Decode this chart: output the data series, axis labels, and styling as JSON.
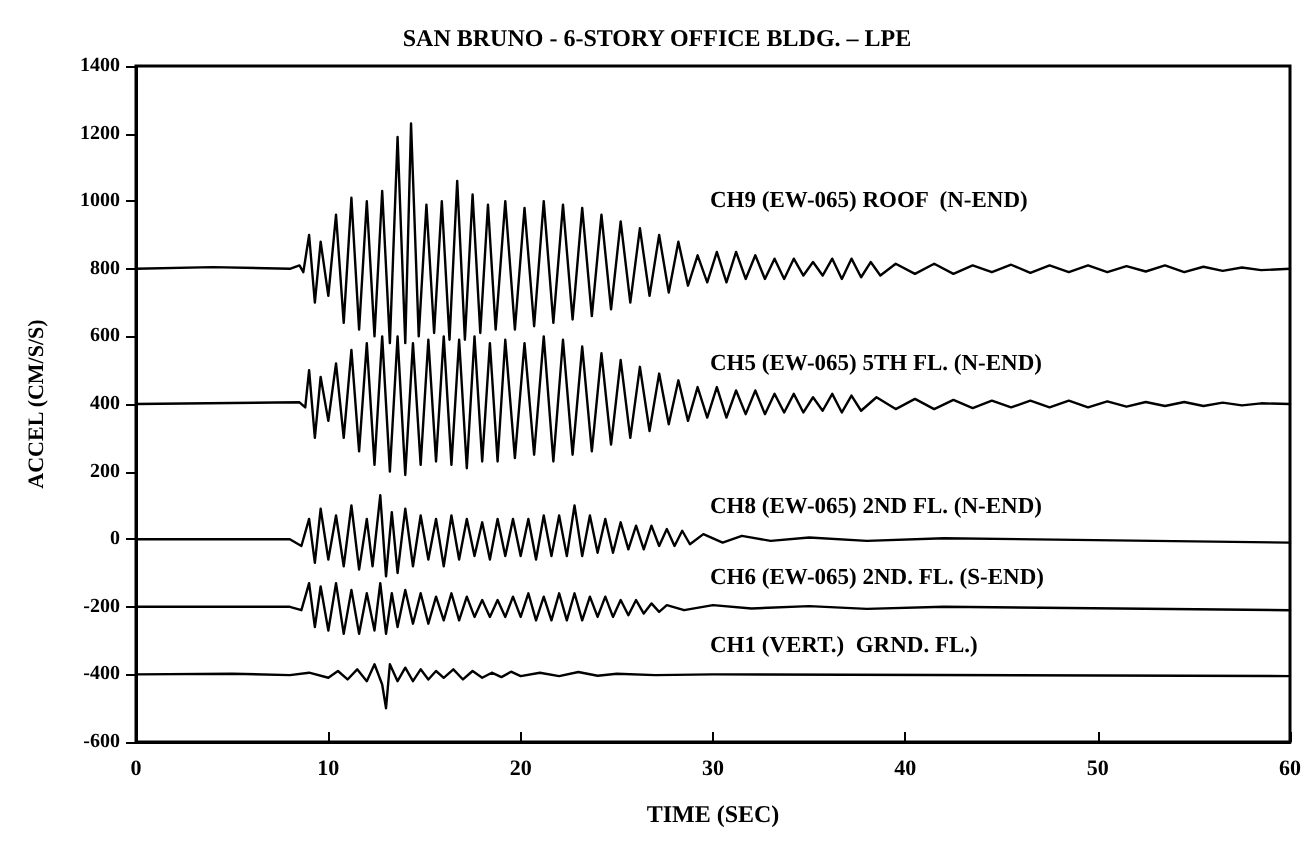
{
  "chart_data": {
    "type": "line",
    "title": "SAN BRUNO - 6-STORY OFFICE BLDG. – LPE",
    "xlabel": "TIME (SEC)",
    "ylabel": "ACCEL (CM/S/S)",
    "xlim": [
      0,
      60
    ],
    "xticks": [
      0,
      10,
      20,
      30,
      40,
      50,
      60
    ],
    "ylim": [
      -600,
      1400
    ],
    "yticks": [
      -600,
      -400,
      -200,
      0,
      200,
      400,
      600,
      800,
      1000,
      1200,
      1400
    ],
    "grid": false,
    "marker": "none",
    "line_style": "solid",
    "series": [
      {
        "name": "CH9 (EW-065) ROOF  (N-END)",
        "color": "#000000",
        "x": [
          0,
          4,
          8,
          8.5,
          8.7,
          9,
          9.3,
          9.6,
          10,
          10.4,
          10.8,
          11.2,
          11.6,
          12,
          12.4,
          12.8,
          13.2,
          13.6,
          14,
          14.3,
          14.7,
          15.1,
          15.5,
          15.9,
          16.3,
          16.7,
          17.1,
          17.5,
          17.9,
          18.3,
          18.7,
          19.2,
          19.7,
          20.2,
          20.7,
          21.2,
          21.7,
          22.2,
          22.7,
          23.2,
          23.7,
          24.2,
          24.7,
          25.2,
          25.7,
          26.2,
          26.7,
          27.2,
          27.7,
          28.2,
          28.7,
          29.2,
          29.7,
          30.2,
          30.7,
          31.2,
          31.7,
          32.2,
          32.7,
          33.2,
          33.7,
          34.2,
          34.7,
          35.2,
          35.7,
          36.2,
          36.7,
          37.2,
          37.7,
          38.2,
          38.7,
          39.5,
          40.5,
          41.5,
          42.5,
          43.5,
          44.5,
          45.5,
          46.5,
          47.5,
          48.5,
          49.5,
          50.5,
          51.5,
          52.5,
          53.5,
          54.5,
          55.5,
          56.5,
          57.5,
          58.5,
          60
        ],
        "values": [
          800,
          805,
          800,
          810,
          790,
          900,
          700,
          880,
          720,
          960,
          640,
          1010,
          620,
          1000,
          600,
          1030,
          580,
          1190,
          580,
          1230,
          600,
          990,
          610,
          1000,
          590,
          1060,
          590,
          1020,
          610,
          990,
          620,
          1000,
          620,
          980,
          630,
          1000,
          640,
          990,
          650,
          980,
          660,
          960,
          680,
          940,
          700,
          920,
          720,
          900,
          730,
          880,
          750,
          840,
          760,
          850,
          760,
          850,
          770,
          840,
          770,
          830,
          770,
          830,
          780,
          820,
          780,
          830,
          770,
          830,
          775,
          820,
          780,
          815,
          785,
          815,
          785,
          810,
          790,
          812,
          788,
          810,
          790,
          810,
          790,
          808,
          792,
          810,
          790,
          806,
          794,
          804,
          796,
          800
        ]
      },
      {
        "name": "CH5 (EW-065) 5TH FL. (N-END)",
        "color": "#000000",
        "x": [
          0,
          8.5,
          8.8,
          9,
          9.3,
          9.6,
          10,
          10.4,
          10.8,
          11.2,
          11.6,
          12,
          12.4,
          12.8,
          13.2,
          13.6,
          14,
          14.4,
          14.8,
          15.2,
          15.6,
          16,
          16.4,
          16.8,
          17.2,
          17.6,
          18,
          18.4,
          18.8,
          19.2,
          19.7,
          20.2,
          20.7,
          21.2,
          21.7,
          22.2,
          22.7,
          23.2,
          23.7,
          24.2,
          24.7,
          25.2,
          25.7,
          26.2,
          26.7,
          27.2,
          27.7,
          28.2,
          28.7,
          29.2,
          29.7,
          30.2,
          30.7,
          31.2,
          31.7,
          32.2,
          32.7,
          33.2,
          33.7,
          34.2,
          34.7,
          35.2,
          35.7,
          36.2,
          36.7,
          37.2,
          37.7,
          38.5,
          39.5,
          40.5,
          41.5,
          42.5,
          43.5,
          44.5,
          45.5,
          46.5,
          47.5,
          48.5,
          49.5,
          50.5,
          51.5,
          52.5,
          53.5,
          54.5,
          55.5,
          56.5,
          57.5,
          58.5,
          60
        ],
        "values": [
          400,
          405,
          390,
          500,
          300,
          480,
          350,
          520,
          300,
          560,
          260,
          580,
          220,
          600,
          200,
          600,
          190,
          580,
          220,
          590,
          230,
          600,
          220,
          590,
          210,
          600,
          230,
          580,
          230,
          590,
          240,
          580,
          250,
          600,
          230,
          590,
          250,
          570,
          260,
          550,
          280,
          530,
          300,
          510,
          320,
          490,
          340,
          470,
          350,
          450,
          360,
          450,
          360,
          440,
          370,
          440,
          370,
          430,
          375,
          430,
          375,
          420,
          380,
          430,
          375,
          425,
          380,
          420,
          385,
          415,
          385,
          412,
          388,
          410,
          390,
          410,
          390,
          410,
          390,
          408,
          392,
          406,
          394,
          406,
          394,
          404,
          396,
          402,
          400
        ]
      },
      {
        "name": "CH8 (EW-065) 2ND FL. (N-END)",
        "color": "#000000",
        "x": [
          0,
          8,
          8.6,
          9,
          9.3,
          9.6,
          10,
          10.4,
          10.8,
          11.2,
          11.6,
          12,
          12.3,
          12.7,
          13,
          13.3,
          13.6,
          14,
          14.4,
          14.8,
          15.2,
          15.6,
          16,
          16.4,
          16.8,
          17.2,
          17.6,
          18,
          18.4,
          18.8,
          19.2,
          19.6,
          20,
          20.4,
          20.8,
          21.2,
          21.6,
          22,
          22.4,
          22.8,
          23.2,
          23.6,
          24,
          24.4,
          24.8,
          25.2,
          25.6,
          26,
          26.4,
          26.8,
          27.2,
          27.6,
          28,
          28.4,
          28.8,
          29.5,
          30.5,
          31.5,
          33,
          35,
          38,
          42,
          60
        ],
        "values": [
          0,
          0,
          -20,
          60,
          -70,
          90,
          -60,
          70,
          -80,
          100,
          -90,
          60,
          -80,
          130,
          -110,
          80,
          -100,
          90,
          -80,
          70,
          -60,
          60,
          -80,
          70,
          -60,
          60,
          -50,
          50,
          -60,
          60,
          -50,
          60,
          -50,
          60,
          -60,
          70,
          -50,
          70,
          -50,
          100,
          -50,
          70,
          -40,
          60,
          -40,
          50,
          -30,
          40,
          -30,
          40,
          -20,
          30,
          -20,
          25,
          -15,
          15,
          -10,
          10,
          -5,
          5,
          -5,
          3,
          -10
        ]
      },
      {
        "name": "CH6 (EW-065) 2ND. FL. (S-END)",
        "color": "#000000",
        "x": [
          0,
          8,
          8.6,
          9,
          9.3,
          9.6,
          10,
          10.4,
          10.8,
          11.2,
          11.6,
          12,
          12.4,
          12.7,
          13,
          13.3,
          13.6,
          14,
          14.4,
          14.8,
          15.2,
          15.6,
          16,
          16.4,
          16.8,
          17.2,
          17.6,
          18,
          18.4,
          18.8,
          19.2,
          19.6,
          20,
          20.4,
          20.8,
          21.2,
          21.6,
          22,
          22.4,
          22.8,
          23.2,
          23.6,
          24,
          24.4,
          24.8,
          25.2,
          25.6,
          26,
          26.4,
          26.8,
          27.2,
          27.6,
          28.5,
          30,
          32,
          35,
          38,
          42,
          60
        ],
        "values": [
          -200,
          -200,
          -210,
          -130,
          -260,
          -140,
          -270,
          -130,
          -280,
          -150,
          -280,
          -160,
          -270,
          -130,
          -280,
          -160,
          -260,
          -150,
          -250,
          -160,
          -250,
          -170,
          -240,
          -160,
          -240,
          -170,
          -230,
          -180,
          -230,
          -180,
          -230,
          -170,
          -230,
          -160,
          -240,
          -170,
          -240,
          -160,
          -240,
          -160,
          -240,
          -170,
          -230,
          -170,
          -230,
          -180,
          -225,
          -180,
          -220,
          -190,
          -215,
          -195,
          -210,
          -195,
          -205,
          -198,
          -206,
          -200,
          -210
        ]
      },
      {
        "name": "CH1 (VERT.)  GRND. FL.)",
        "color": "#000000",
        "x": [
          0,
          5,
          8,
          9,
          10,
          10.5,
          11,
          11.5,
          12,
          12.4,
          12.8,
          13,
          13.2,
          13.6,
          14,
          14.4,
          14.8,
          15.2,
          15.6,
          16,
          16.5,
          17,
          17.5,
          18,
          18.5,
          19,
          19.5,
          20,
          21,
          22,
          23,
          24,
          25,
          27,
          30,
          60
        ],
        "values": [
          -400,
          -398,
          -402,
          -395,
          -410,
          -390,
          -415,
          -385,
          -420,
          -370,
          -430,
          -500,
          -370,
          -420,
          -380,
          -420,
          -385,
          -415,
          -390,
          -410,
          -385,
          -415,
          -390,
          -410,
          -395,
          -408,
          -392,
          -405,
          -395,
          -405,
          -393,
          -404,
          -398,
          -402,
          -400,
          -405
        ]
      }
    ]
  }
}
